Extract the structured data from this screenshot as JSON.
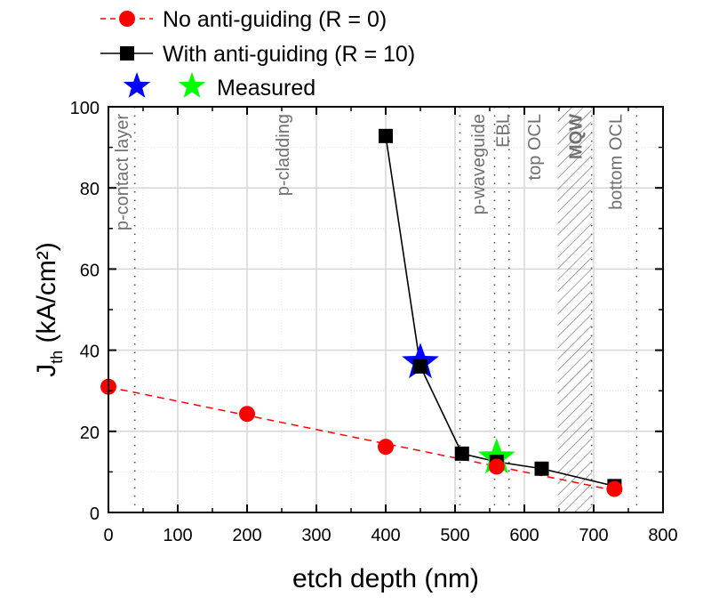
{
  "chart_data": {
    "type": "scatter",
    "title": "",
    "xlabel": "etch depth (nm)",
    "ylabel_main": "J",
    "ylabel_sub": "th",
    "ylabel_rest": " (kA/cm²)",
    "xlim": [
      0,
      800
    ],
    "ylim": [
      0,
      100
    ],
    "xticks": [
      0,
      100,
      200,
      300,
      400,
      500,
      600,
      700,
      800
    ],
    "yticks": [
      0,
      20,
      40,
      60,
      80,
      100
    ],
    "grid": true,
    "series": [
      {
        "name": "No anti-guiding (R = 0)",
        "marker": "circle",
        "line": "dashed",
        "color": "#ff0000",
        "x": [
          0,
          200,
          400,
          560,
          730
        ],
        "y": [
          31,
          24.3,
          16.2,
          11.3,
          5.8
        ]
      },
      {
        "name": "With anti-guiding (R = 10)",
        "marker": "square",
        "line": "solid",
        "color": "#000000",
        "x": [
          400,
          450,
          510,
          560,
          625,
          730
        ],
        "y": [
          92.8,
          36,
          14.5,
          12.5,
          10.8,
          6.5
        ]
      }
    ],
    "measured": {
      "name": "Measured",
      "points": [
        {
          "x": 450,
          "y": 37,
          "color": "#0000ff"
        },
        {
          "x": 560,
          "y": 13.5,
          "color": "#00ff00"
        }
      ]
    },
    "boundaries": [
      38,
      507,
      557,
      578,
      697,
      762
    ],
    "mqw_region": {
      "label": "MQW",
      "x_start": 648,
      "x_end": 697
    },
    "region_labels": [
      {
        "text": "p-contact layer",
        "x": 18
      },
      {
        "text": "p-cladding",
        "x": 250
      },
      {
        "text": "p-waveguide",
        "x": 532
      },
      {
        "text": "EBL",
        "x": 567
      },
      {
        "text": "top OCL",
        "x": 613
      },
      {
        "text": "bottom OCL",
        "x": 730
      }
    ],
    "legend": {
      "position": "top-left-outside",
      "entries": [
        "No anti-guiding (R = 0)",
        "With anti-guiding (R = 10)",
        "Measured"
      ]
    }
  }
}
